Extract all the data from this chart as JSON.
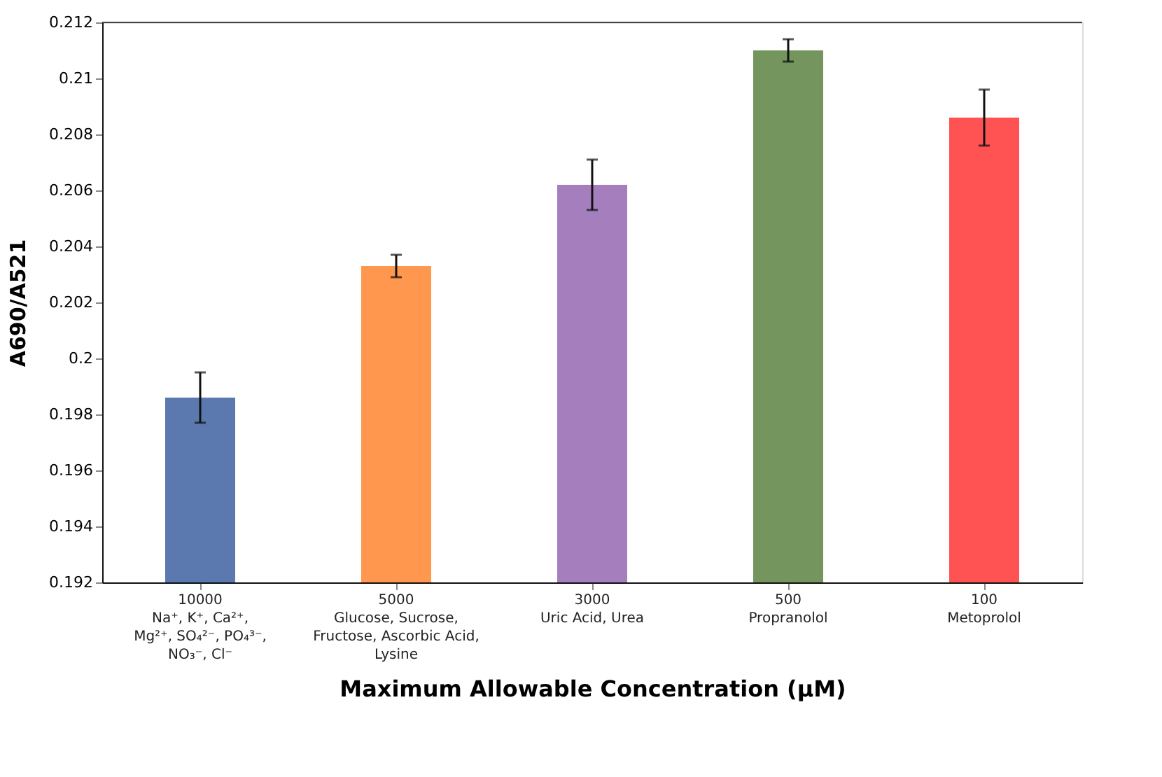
{
  "chart_data": {
    "type": "bar",
    "xlabel": "Maximum Allowable Concentration (μM)",
    "ylabel": "A690/A521",
    "categories": [
      "10000\nNa⁺, K⁺, Ca²⁺,\nMg²⁺, SO₄²⁻, PO₄³⁻,\nNO₃⁻, Cl⁻",
      "5000\nGlucose, Sucrose,\nFructose, Ascorbic Acid,\nLysine",
      "3000\nUric Acid, Urea",
      "500\nPropranolol",
      "100\nMetoprolol"
    ],
    "values": [
      0.1986,
      0.2033,
      0.2062,
      0.211,
      0.2086
    ],
    "errors": [
      0.0009,
      0.0004,
      0.0009,
      0.0004,
      0.001
    ],
    "colors": [
      "#5b79ae",
      "#ff974f",
      "#a57fbd",
      "#74955d",
      "#ff5252"
    ],
    "ylim": [
      0.192,
      0.212
    ],
    "yticks": [
      0.192,
      0.194,
      0.196,
      0.198,
      {
        "value": 0.2,
        "label": "0.2"
      },
      0.202,
      0.204,
      0.206,
      0.208,
      {
        "value": 0.21,
        "label": "0.21"
      },
      0.212
    ],
    "grid": false,
    "legend": false
  }
}
